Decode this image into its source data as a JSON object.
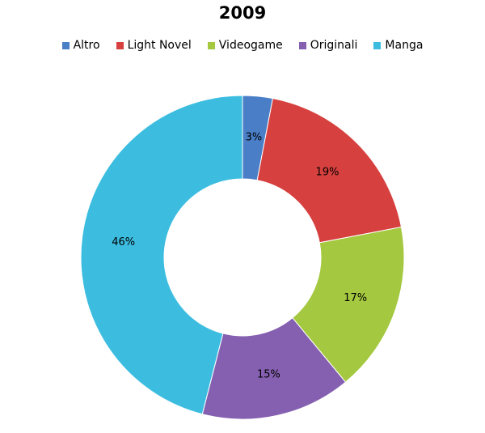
{
  "chart_data": {
    "type": "donut",
    "title": "2009",
    "categories": [
      "Altro",
      "Light Novel",
      "Videogame",
      "Originali",
      "Manga"
    ],
    "values": [
      3,
      19,
      17,
      15,
      46
    ],
    "value_labels": [
      "3%",
      "19%",
      "17%",
      "15%",
      "46%"
    ],
    "colors": [
      "#4a7fc8",
      "#d6403e",
      "#a4c83f",
      "#8560b0",
      "#3cbde0"
    ]
  }
}
